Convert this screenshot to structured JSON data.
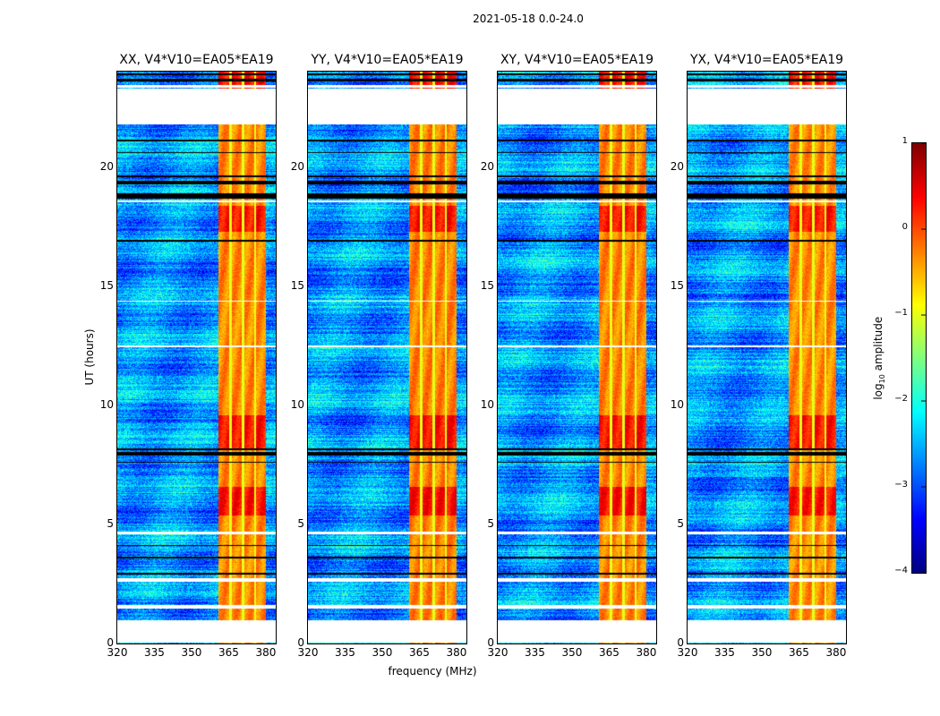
{
  "chart_data": {
    "type": "heatmap",
    "title": "2021-05-18 0.0-24.0",
    "xlabel": "frequency (MHz)",
    "ylabel": "UT (hours)",
    "xlim": [
      320,
      384
    ],
    "ylim": [
      0,
      24
    ],
    "xticks": [
      "320",
      "335",
      "350",
      "365",
      "380"
    ],
    "xtick_values": [
      320,
      335,
      350,
      365,
      380
    ],
    "yticks": [
      "0",
      "5",
      "10",
      "15",
      "20"
    ],
    "ytick_values": [
      0,
      5,
      10,
      15,
      20
    ],
    "panels": [
      {
        "title": "XX, V4*V10=EA05*EA19",
        "band_level": 1.0
      },
      {
        "title": "YY, V4*V10=EA05*EA19",
        "band_level": 1.1
      },
      {
        "title": "XY, V4*V10=EA05*EA19",
        "band_level": 1.05
      },
      {
        "title": "YX, V4*V10=EA05*EA19",
        "band_level": 0.95
      }
    ],
    "bright_band_mhz": [
      360.5,
      380
    ],
    "band_gap_lines_mhz": [
      365.5,
      370.5,
      375.5
    ],
    "background_log_amplitude": -2.6,
    "band_log_amplitude": -0.6,
    "strong_rfi_hours": [
      [
        17.3,
        18.4
      ],
      [
        23.3,
        24.0
      ],
      [
        5.4,
        6.6
      ],
      [
        8.2,
        9.6
      ]
    ],
    "flagged_hours_white": [
      [
        0.05,
        1.0
      ],
      [
        1.5,
        1.62
      ],
      [
        2.6,
        2.75
      ],
      [
        4.6,
        4.72
      ],
      [
        12.45,
        12.52
      ],
      [
        14.35,
        14.42
      ],
      [
        21.8,
        23.3
      ],
      [
        23.35,
        23.45
      ],
      [
        18.55,
        18.6
      ]
    ],
    "flagged_hours_black": [
      [
        2.9,
        2.97
      ],
      [
        3.6,
        3.65
      ],
      [
        4.1,
        4.14
      ],
      [
        7.6,
        7.66
      ],
      [
        7.9,
        8.05
      ],
      [
        8.15,
        8.2
      ],
      [
        16.9,
        16.95
      ],
      [
        18.7,
        18.9
      ],
      [
        19.3,
        19.45
      ],
      [
        19.6,
        19.65
      ],
      [
        20.6,
        20.65
      ],
      [
        21.1,
        21.15
      ],
      [
        23.6,
        23.7
      ],
      [
        23.85,
        23.95
      ]
    ],
    "colorbar": {
      "label_main": "log",
      "label_sub": "10",
      "label_rest": " amplitude",
      "ticks": [
        "1",
        "0",
        "−1",
        "−2",
        "−3",
        "−4"
      ],
      "tick_values": [
        1,
        0,
        -1,
        -2,
        -3,
        -4
      ],
      "range": [
        -4,
        1
      ],
      "colormap": "jet"
    }
  }
}
